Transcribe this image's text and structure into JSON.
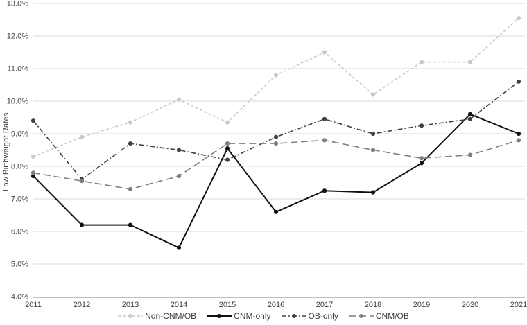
{
  "chart_data": {
    "type": "line",
    "title": "",
    "xlabel": "",
    "ylabel": "Low Birthweight Rates",
    "x": [
      "2011",
      "2012",
      "2013",
      "2014",
      "2015",
      "2016",
      "2017",
      "2018",
      "2019",
      "2020",
      "2021"
    ],
    "ylim": [
      4.0,
      13.0
    ],
    "y_tick_step": 1.0,
    "y_tick_labels": [
      "4.0%",
      "5.0%",
      "6.0%",
      "7.0%",
      "8.0%",
      "9.0%",
      "10.0%",
      "11.0%",
      "12.0%",
      "13.0%"
    ],
    "grid": "horizontal",
    "legend_position": "bottom",
    "axis_color": "#bfbfbf",
    "gridline_color": "#d9d9d9",
    "text_color": "#3d3d3d",
    "series": [
      {
        "name": "Non-CNM/OB",
        "color": "#c9c9c9",
        "dash": "4 3",
        "width": 1.6,
        "values": [
          8.3,
          8.9,
          9.35,
          10.05,
          9.35,
          10.8,
          11.5,
          10.2,
          11.2,
          11.2,
          12.55
        ]
      },
      {
        "name": "CNM-only",
        "color": "#111111",
        "dash": "",
        "width": 2.0,
        "values": [
          7.7,
          6.2,
          6.2,
          5.5,
          8.55,
          6.6,
          7.25,
          7.2,
          8.1,
          9.6,
          9.0
        ]
      },
      {
        "name": "OB-only",
        "color": "#404040",
        "dash": "7 3 2 3",
        "width": 1.6,
        "values": [
          9.4,
          7.6,
          8.7,
          8.5,
          8.2,
          8.9,
          9.45,
          9.0,
          9.25,
          9.45,
          10.6
        ]
      },
      {
        "name": "CNM/OB",
        "color": "#7f7f7f",
        "dash": "10 5",
        "width": 1.6,
        "values": [
          7.8,
          7.55,
          7.3,
          7.7,
          8.7,
          8.7,
          8.8,
          8.5,
          8.25,
          8.35,
          8.8
        ]
      }
    ]
  }
}
